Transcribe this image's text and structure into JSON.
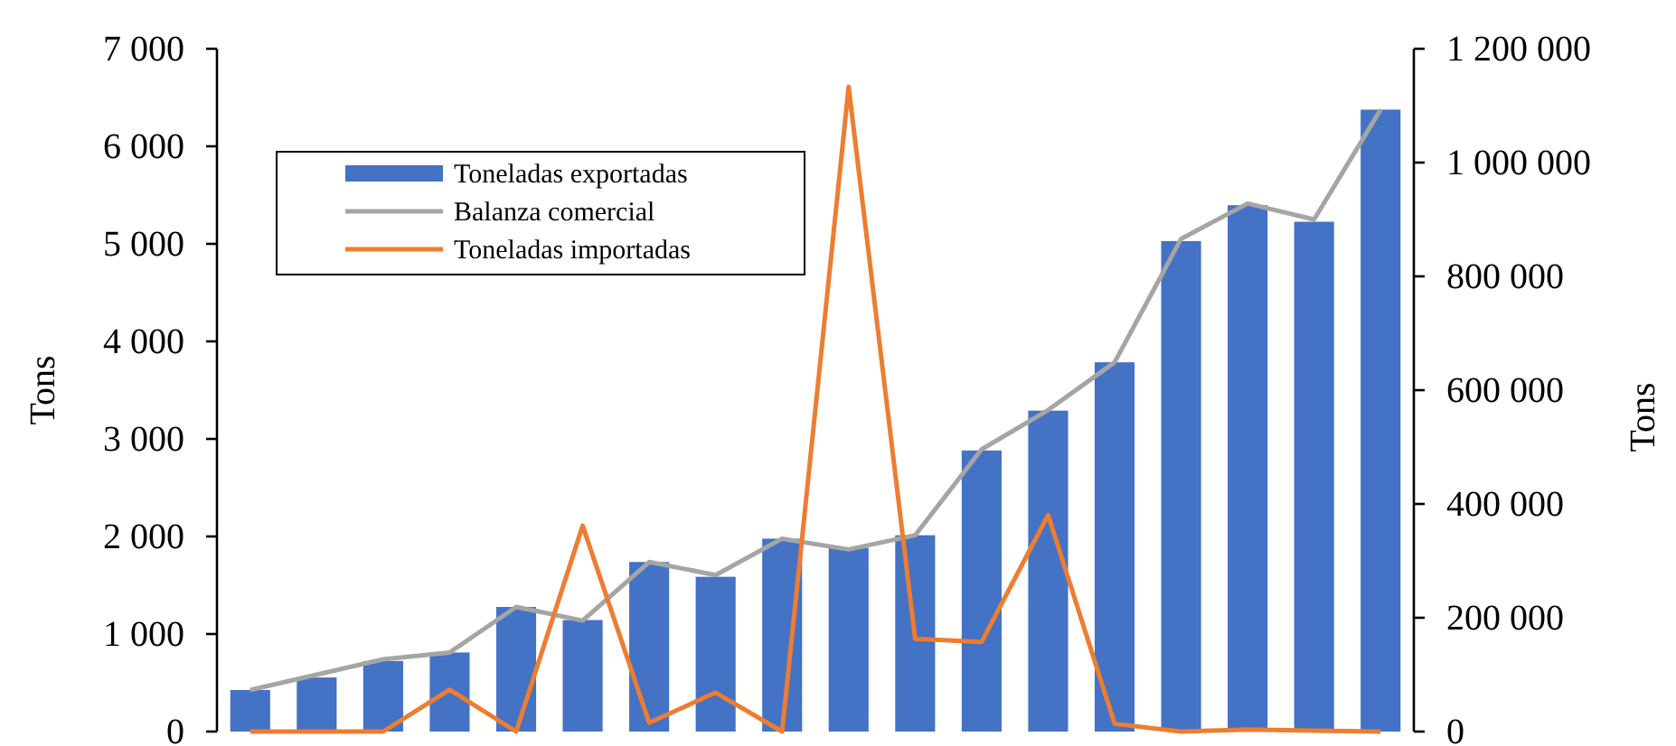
{
  "chart_data": {
    "type": "bar",
    "ylabel": "Tons",
    "y2label": "Tons",
    "categories": [
      null,
      null,
      null,
      null,
      null,
      null,
      null,
      null,
      null,
      null,
      null,
      null,
      null,
      null,
      null,
      null,
      null,
      null
    ],
    "series": [
      {
        "name": "Toneladas exportadas",
        "axis": "y2",
        "color": "#4472c4",
        "values": [
          73000,
          95000,
          124000,
          139000,
          219000,
          196000,
          298000,
          272000,
          339000,
          323000,
          345000,
          494000,
          564000,
          649000,
          862000,
          925000,
          896000,
          1093000
        ]
      },
      {
        "name": "Balanza comercial",
        "type": "line",
        "axis": "y2",
        "color": "#a5a5a5",
        "values": [
          73000,
          100000,
          127000,
          139000,
          219000,
          195000,
          298000,
          275000,
          339000,
          320000,
          345000,
          496000,
          565000,
          649000,
          866000,
          928000,
          900000,
          1093000
        ]
      },
      {
        "name": "Toneladas importadas",
        "type": "line",
        "axis": "y",
        "color": "#ed7d31",
        "values": [
          0,
          0,
          0,
          430,
          0,
          2110,
          90,
          400,
          0,
          6610,
          950,
          920,
          2220,
          80,
          0,
          20,
          10,
          0
        ]
      }
    ],
    "ylim": [
      0,
      7000
    ],
    "yticks": [
      {
        "value": 0,
        "label": "0"
      },
      {
        "value": 1000,
        "label": "1 000"
      },
      {
        "value": 2000,
        "label": "2 000"
      },
      {
        "value": 3000,
        "label": "3 000"
      },
      {
        "value": 4000,
        "label": "4 000"
      },
      {
        "value": 5000,
        "label": "5 000"
      },
      {
        "value": 6000,
        "label": "6 000"
      },
      {
        "value": 7000,
        "label": "7 000"
      }
    ],
    "y2lim": [
      0,
      1200000
    ],
    "y2ticks": [
      {
        "value": 0,
        "label": "0"
      },
      {
        "value": 200000,
        "label": "200 000"
      },
      {
        "value": 400000,
        "label": "400 000"
      },
      {
        "value": 600000,
        "label": "600 000"
      },
      {
        "value": 800000,
        "label": "800 000"
      },
      {
        "value": 1000000,
        "label": "1 000 000"
      },
      {
        "value": 1200000,
        "label": "1 200 000"
      }
    ],
    "grid": false,
    "legend": "top left",
    "marker": "none",
    "line_style": "solid"
  }
}
